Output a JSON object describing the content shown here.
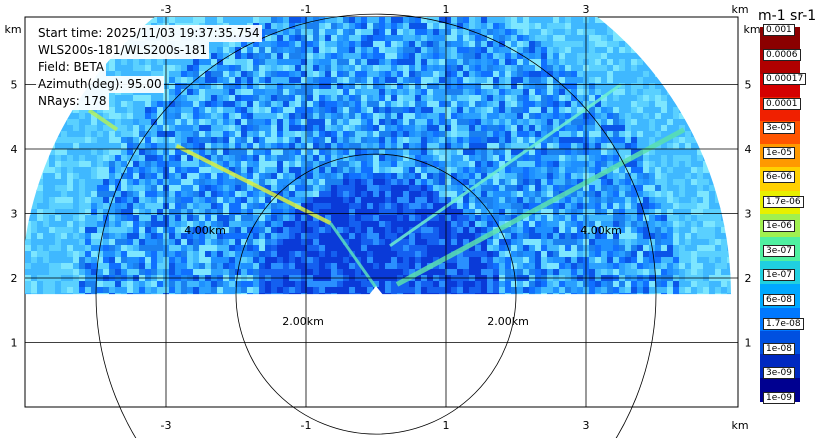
{
  "info": {
    "start_time": "Start time: 2025/11/03 19:37:35.754",
    "instrument": "WLS200s-181/WLS200s-181",
    "field": "Field: BETA",
    "azimuth": "Azimuth(deg): 95.00",
    "nrays": "NRays: 178"
  },
  "chart_data": {
    "type": "heatmap",
    "description_field": "BETA",
    "x_ticks": [
      -3,
      -1,
      1,
      3
    ],
    "y_ticks": [
      1,
      2,
      3,
      4,
      5
    ],
    "x_unit": "km",
    "y_unit": "km",
    "range_rings": [
      "2.00km",
      "4.00km"
    ],
    "colorbar": {
      "title": "m-1 sr-1",
      "labels": [
        "0.001",
        "0.0006",
        "0.00017",
        "0.0001",
        "3e-05",
        "1e-05",
        "6e-06",
        "1.7e-06",
        "1e-06",
        "3e-07",
        "1e-07",
        "6e-08",
        "1.7e-08",
        "1e-08",
        "3e-09",
        "1e-09"
      ],
      "colors": [
        "#8b0000",
        "#b00000",
        "#d40000",
        "#f02000",
        "#ff5500",
        "#ff9900",
        "#ffd000",
        "#e8f000",
        "#a0f050",
        "#4ff0a0",
        "#20d0e0",
        "#00a8ff",
        "#0078ff",
        "#0050e0",
        "#0028c0",
        "#000090"
      ]
    }
  }
}
